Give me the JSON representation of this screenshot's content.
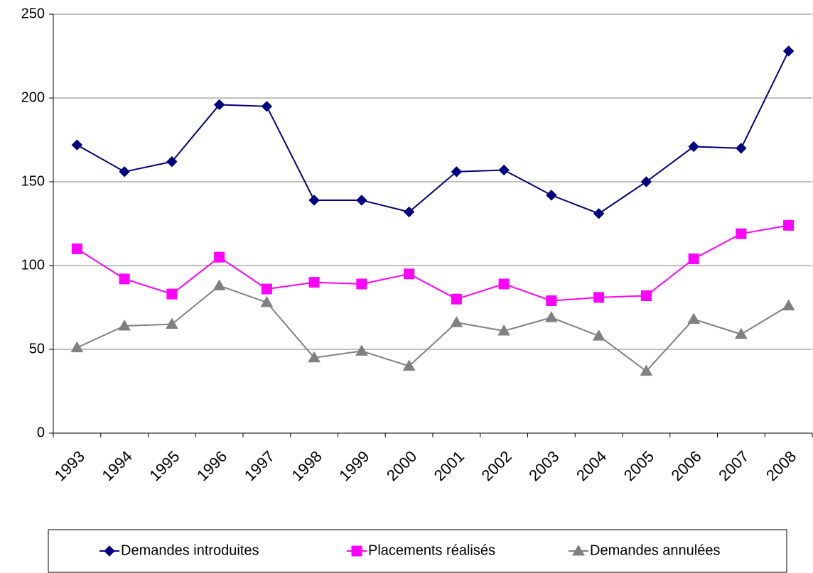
{
  "chart_data": {
    "type": "line",
    "categories": [
      "1993",
      "1994",
      "1995",
      "1996",
      "1997",
      "1998",
      "1999",
      "2000",
      "2001",
      "2002",
      "2003",
      "2004",
      "2005",
      "2006",
      "2007",
      "2008"
    ],
    "series": [
      {
        "name": "Demandes introduites",
        "color": "#000080",
        "marker": "diamond",
        "values": [
          172,
          156,
          162,
          196,
          195,
          139,
          139,
          132,
          156,
          157,
          142,
          131,
          150,
          171,
          170,
          228
        ]
      },
      {
        "name": "Placements réalisés",
        "color": "#ff00ff",
        "marker": "square",
        "values": [
          110,
          92,
          83,
          105,
          86,
          90,
          89,
          95,
          80,
          89,
          79,
          81,
          82,
          104,
          119,
          124
        ]
      },
      {
        "name": "Demandes annulées",
        "color": "#808080",
        "marker": "triangle",
        "values": [
          51,
          64,
          65,
          88,
          78,
          45,
          49,
          40,
          66,
          61,
          69,
          58,
          37,
          68,
          59,
          76
        ]
      }
    ],
    "ylim": [
      0,
      250
    ],
    "yticks": [
      0,
      50,
      100,
      150,
      200,
      250
    ],
    "grid": true,
    "legend": "bottom"
  }
}
